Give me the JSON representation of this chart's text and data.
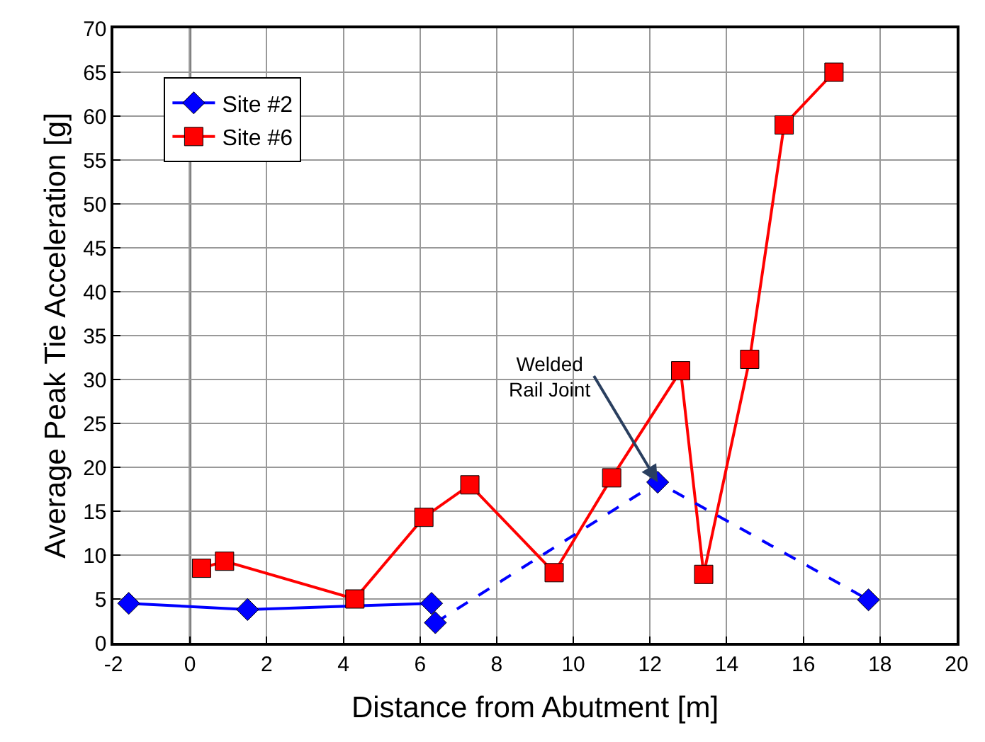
{
  "chart_data": {
    "type": "line",
    "xlabel": "Distance from Abutment [m]",
    "ylabel": "Average Peak Tie Acceleration [g]",
    "xlim": [
      -2,
      20
    ],
    "xticks": [
      -2,
      0,
      2,
      4,
      6,
      8,
      10,
      12,
      14,
      16,
      18,
      20
    ],
    "ylim": [
      0,
      70
    ],
    "yticks": [
      0,
      5,
      10,
      15,
      20,
      25,
      30,
      35,
      40,
      45,
      50,
      55,
      60,
      65,
      70
    ],
    "grid": true,
    "legend": "top left",
    "series": [
      {
        "name": "Site #2",
        "color": "#0000ff",
        "marker": "diamond",
        "line_style": "solid",
        "x": [
          -1.6,
          1.5,
          6.3
        ],
        "values": [
          4.5,
          3.8,
          4.5
        ]
      },
      {
        "name": "Site #6",
        "color": "#ff0000",
        "marker": "square",
        "line_style": "solid",
        "x": [
          0.3,
          0.9,
          4.3,
          6.1,
          7.3,
          9.5,
          11.0,
          12.8,
          13.4,
          14.6,
          15.5,
          16.8
        ],
        "values": [
          8.5,
          9.3,
          5.0,
          14.3,
          18.0,
          8.0,
          18.8,
          31.0,
          7.8,
          32.3,
          59.0,
          65.0
        ]
      },
      {
        "color": "#0000ff",
        "marker": "diamond",
        "line_style": "dashed",
        "x": [
          6.4,
          12.2,
          17.7
        ],
        "values": [
          2.3,
          18.3,
          4.9
        ]
      }
    ],
    "ref_lines": [
      {
        "axis": "x",
        "value": 0,
        "color": "#000000",
        "line_style": "solid"
      }
    ],
    "annotations": [
      {
        "text": "Welded\nRail Joint",
        "x": 12.2,
        "y": 18.3
      }
    ]
  }
}
